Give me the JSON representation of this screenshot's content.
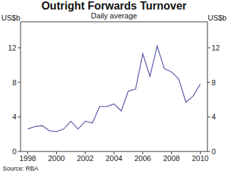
{
  "chart_data": {
    "type": "line",
    "title": "Outright Forwards Turnover",
    "subtitle": "Daily average",
    "y_label": "US$b",
    "y2_label": "US$b",
    "source": "Source: RBA",
    "x": [
      1998.0,
      1998.5,
      1999.0,
      1999.5,
      2000.0,
      2000.5,
      2001.0,
      2001.5,
      2002.0,
      2002.5,
      2003.0,
      2003.5,
      2004.0,
      2004.5,
      2005.0,
      2005.5,
      2006.0,
      2006.5,
      2007.0,
      2007.5,
      2008.0,
      2008.5,
      2009.0,
      2009.5,
      2010.0
    ],
    "series": [
      {
        "name": "Outright Forwards Turnover",
        "color": "#5b5ba8",
        "values": [
          2.6,
          2.9,
          3.0,
          2.4,
          2.3,
          2.6,
          3.5,
          2.6,
          3.5,
          3.3,
          5.2,
          5.2,
          5.5,
          4.7,
          7.0,
          7.2,
          11.3,
          8.7,
          12.2,
          9.6,
          9.2,
          8.4,
          5.7,
          6.4,
          7.8
        ]
      }
    ],
    "xlim": [
      1997.5,
      2010.5
    ],
    "xticks": [
      1998,
      2000,
      2002,
      2004,
      2006,
      2008,
      2010
    ],
    "ylim": [
      0,
      15
    ],
    "yticks": [
      0,
      4,
      8,
      12
    ],
    "y2lim": [
      0,
      15
    ],
    "y2ticks": [
      0,
      4,
      8,
      12
    ],
    "grid": false
  }
}
